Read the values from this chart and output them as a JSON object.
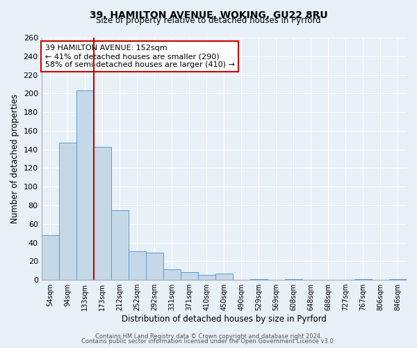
{
  "title1": "39, HAMILTON AVENUE, WOKING, GU22 8RU",
  "title2": "Size of property relative to detached houses in Pyrford",
  "xlabel": "Distribution of detached houses by size in Pyrford",
  "ylabel": "Number of detached properties",
  "bin_labels": [
    "54sqm",
    "94sqm",
    "133sqm",
    "173sqm",
    "212sqm",
    "252sqm",
    "292sqm",
    "331sqm",
    "371sqm",
    "410sqm",
    "450sqm",
    "490sqm",
    "529sqm",
    "569sqm",
    "608sqm",
    "648sqm",
    "688sqm",
    "727sqm",
    "767sqm",
    "806sqm",
    "846sqm"
  ],
  "bar_values": [
    48,
    147,
    203,
    143,
    75,
    31,
    29,
    11,
    8,
    5,
    7,
    0,
    1,
    0,
    1,
    0,
    0,
    0,
    1,
    0,
    1
  ],
  "bar_color": "#c5d8e8",
  "bar_edge_color": "#5b9bd5",
  "vline_color": "#cc0000",
  "annotation_title": "39 HAMILTON AVENUE: 152sqm",
  "annotation_line1": "← 41% of detached houses are smaller (290)",
  "annotation_line2": "58% of semi-detached houses are larger (410) →",
  "annotation_box_color": "#ffffff",
  "annotation_box_edge_color": "#cc0000",
  "ylim": [
    0,
    260
  ],
  "yticks": [
    0,
    20,
    40,
    60,
    80,
    100,
    120,
    140,
    160,
    180,
    200,
    220,
    240,
    260
  ],
  "footer1": "Contains HM Land Registry data © Crown copyright and database right 2024.",
  "footer2": "Contains public sector information licensed under the Open Government Licence v3.0.",
  "bg_color": "#e8f0f8",
  "grid_color": "#ffffff"
}
